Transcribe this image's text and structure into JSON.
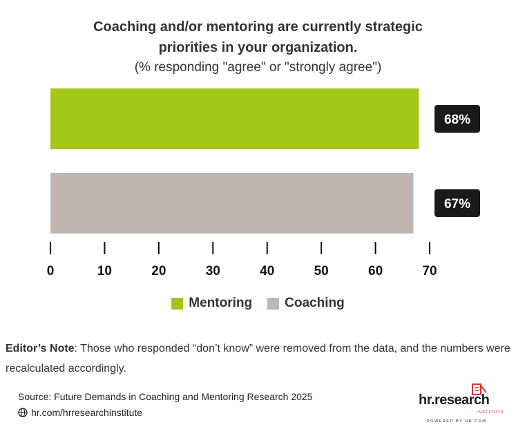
{
  "chart_data": {
    "type": "bar",
    "orientation": "horizontal",
    "title": "Coaching and/or mentoring are currently strategic priorities in your organization.",
    "subtitle": "(% responding \"agree\" or \"strongly agree\")",
    "categories": [
      "Mentoring",
      "Coaching"
    ],
    "values": [
      68,
      67
    ],
    "value_labels": [
      "68%",
      "67%"
    ],
    "colors": [
      "#a3c617",
      "#bfb5b1"
    ],
    "xlim": [
      0,
      70
    ],
    "ticks": [
      "0",
      "10",
      "20",
      "30",
      "40",
      "50",
      "60",
      "70"
    ],
    "grid": false,
    "legend_position": "bottom"
  },
  "title_line1": "Coaching and/or mentoring are currently strategic",
  "title_line2": "priorities in your organization.",
  "note_label": "Editor’s Note",
  "note_text": ": Those who responded “don’t know” were removed from the data, and the numbers were recalculated accordingly.",
  "source": "Source:  Future Demands in Coaching and Mentoring Research 2025",
  "url": "hr.com/hrresearchinstitute",
  "logo": {
    "text": "hr.research",
    "sub": "INSTITUTE",
    "powered": "POWERED BY HR.COM",
    "accent": "#e03131"
  }
}
